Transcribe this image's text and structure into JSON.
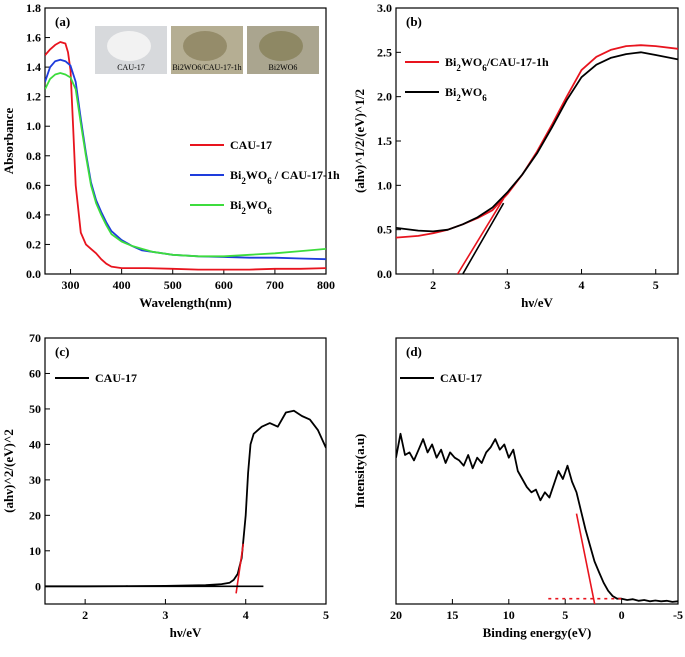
{
  "chart_data": [
    {
      "id": "a",
      "panel_label": "(a)",
      "type": "line",
      "xlabel": "Wavelength(nm)",
      "ylabel": "Absorbance",
      "xlim": [
        250,
        800
      ],
      "ylim": [
        0.0,
        1.8
      ],
      "xticks": [
        300,
        400,
        500,
        600,
        700,
        800
      ],
      "yticks": [
        0.0,
        0.2,
        0.4,
        0.6,
        0.8,
        1.0,
        1.2,
        1.4,
        1.6,
        1.8
      ],
      "ytick_labels": [
        "0.0",
        "0.2",
        "0.4",
        "0.6",
        "0.8",
        "1.0",
        "1.2",
        "1.4",
        "1.6",
        "1.8"
      ],
      "photo_labels": [
        "CAU-17",
        "Bi2WO6/CAU-17-1h",
        "Bi2WO6"
      ],
      "series": [
        {
          "name": "CAU-17",
          "legend": [
            "CAU-17",
            ""
          ],
          "color": "#e8141e",
          "x": [
            250,
            260,
            270,
            280,
            290,
            295,
            300,
            305,
            310,
            320,
            330,
            340,
            350,
            360,
            370,
            380,
            400,
            450,
            500,
            550,
            600,
            650,
            700,
            750,
            800
          ],
          "y": [
            1.48,
            1.52,
            1.55,
            1.57,
            1.56,
            1.5,
            1.38,
            1.0,
            0.6,
            0.28,
            0.2,
            0.17,
            0.14,
            0.1,
            0.07,
            0.05,
            0.04,
            0.04,
            0.035,
            0.03,
            0.03,
            0.03,
            0.035,
            0.035,
            0.04
          ]
        },
        {
          "name": "Bi2WO6 / CAU-17-1h",
          "legend": [
            "Bi",
            "2",
            "WO",
            "6",
            " / CAU-17-1h"
          ],
          "color": "#1e3cdc",
          "x": [
            250,
            260,
            270,
            280,
            290,
            300,
            310,
            320,
            330,
            340,
            350,
            360,
            370,
            380,
            400,
            420,
            440,
            460,
            500,
            550,
            600,
            650,
            700,
            750,
            800
          ],
          "y": [
            1.3,
            1.4,
            1.44,
            1.45,
            1.44,
            1.41,
            1.3,
            1.05,
            0.82,
            0.62,
            0.5,
            0.42,
            0.35,
            0.29,
            0.23,
            0.19,
            0.16,
            0.15,
            0.13,
            0.12,
            0.115,
            0.11,
            0.11,
            0.105,
            0.1
          ]
        },
        {
          "name": "Bi2WO6",
          "legend": [
            "Bi",
            "2",
            "WO",
            "6",
            ""
          ],
          "color": "#3ddc3d",
          "x": [
            250,
            260,
            270,
            280,
            290,
            300,
            310,
            320,
            330,
            340,
            350,
            360,
            370,
            380,
            400,
            420,
            440,
            460,
            500,
            550,
            600,
            650,
            700,
            750,
            800
          ],
          "y": [
            1.25,
            1.32,
            1.35,
            1.36,
            1.35,
            1.33,
            1.25,
            1.02,
            0.8,
            0.6,
            0.48,
            0.4,
            0.33,
            0.27,
            0.22,
            0.19,
            0.17,
            0.15,
            0.13,
            0.12,
            0.12,
            0.13,
            0.14,
            0.155,
            0.17
          ]
        }
      ]
    },
    {
      "id": "b",
      "panel_label": "(b)",
      "type": "line",
      "xlabel": "hν/eV",
      "ylabel": "(ahν)^1/2/(eV)^1/2",
      "xlim": [
        1.5,
        5.3
      ],
      "ylim": [
        0.0,
        3.0
      ],
      "xticks": [
        2,
        3,
        4,
        5
      ],
      "yticks": [
        0.0,
        0.5,
        1.0,
        1.5,
        2.0,
        2.5,
        3.0
      ],
      "ytick_labels": [
        "0.0",
        "0.5",
        "1.0",
        "1.5",
        "2.0",
        "2.5",
        "3.0"
      ],
      "series": [
        {
          "name": "Bi2WO6/CAU-17-1h",
          "legend": [
            "Bi",
            "2",
            "WO",
            "6",
            "/CAU-17-1h"
          ],
          "color": "#e8141e",
          "x": [
            1.5,
            1.8,
            2.0,
            2.2,
            2.4,
            2.6,
            2.8,
            3.0,
            3.2,
            3.4,
            3.6,
            3.8,
            4.0,
            4.2,
            4.4,
            4.6,
            4.8,
            5.0,
            5.3
          ],
          "y": [
            0.41,
            0.43,
            0.46,
            0.5,
            0.56,
            0.63,
            0.72,
            0.9,
            1.12,
            1.38,
            1.68,
            2.0,
            2.3,
            2.45,
            2.53,
            2.57,
            2.58,
            2.57,
            2.54
          ]
        },
        {
          "name": "Bi2WO6",
          "legend": [
            "Bi",
            "2",
            "WO",
            "6",
            ""
          ],
          "color": "#000000",
          "x": [
            1.5,
            1.8,
            2.0,
            2.2,
            2.4,
            2.6,
            2.8,
            3.0,
            3.2,
            3.4,
            3.6,
            3.8,
            4.0,
            4.2,
            4.4,
            4.6,
            4.8,
            5.0,
            5.3
          ],
          "y": [
            0.52,
            0.49,
            0.48,
            0.5,
            0.56,
            0.64,
            0.75,
            0.92,
            1.12,
            1.36,
            1.65,
            1.96,
            2.22,
            2.36,
            2.44,
            2.48,
            2.5,
            2.47,
            2.42
          ]
        },
        {
          "name": "fit-red",
          "color": "#e8141e",
          "fit": true,
          "x": [
            2.33,
            2.95
          ],
          "y": [
            0.0,
            0.85
          ]
        },
        {
          "name": "fit-black",
          "color": "#000000",
          "fit": true,
          "x": [
            2.4,
            2.95
          ],
          "y": [
            0.0,
            0.8
          ]
        }
      ]
    },
    {
      "id": "c",
      "panel_label": "(c)",
      "type": "line",
      "xlabel": "hν/eV",
      "ylabel": "(ahν)^2/(eV)^2",
      "xlim": [
        1.5,
        5.0
      ],
      "ylim": [
        -5,
        70
      ],
      "xticks": [
        2,
        3,
        4,
        5
      ],
      "yticks": [
        0,
        10,
        20,
        30,
        40,
        50,
        60,
        70
      ],
      "ytick_labels": [
        "0",
        "10",
        "20",
        "30",
        "40",
        "50",
        "60",
        "70"
      ],
      "series": [
        {
          "name": "CAU-17",
          "legend": [
            "CAU-17",
            ""
          ],
          "color": "#000000",
          "x": [
            1.5,
            2.0,
            2.5,
            3.0,
            3.5,
            3.7,
            3.8,
            3.85,
            3.9,
            3.95,
            4.0,
            4.03,
            4.06,
            4.1,
            4.15,
            4.2,
            4.3,
            4.4,
            4.5,
            4.6,
            4.7,
            4.8,
            4.9,
            5.0
          ],
          "y": [
            0,
            0,
            0.05,
            0.1,
            0.3,
            0.6,
            1.0,
            1.8,
            3.5,
            8.0,
            20.0,
            32.0,
            40.0,
            43.0,
            44.0,
            45.0,
            46.0,
            45.0,
            49.0,
            49.5,
            48.0,
            47.0,
            44.0,
            39.0
          ]
        },
        {
          "name": "fit-red",
          "color": "#e8141e",
          "fit": true,
          "x": [
            3.88,
            3.97
          ],
          "y": [
            -2,
            12
          ]
        },
        {
          "name": "fit-ext",
          "color": "#000000",
          "fit": true,
          "x": [
            1.5,
            4.22
          ],
          "y": [
            0,
            0
          ]
        }
      ]
    },
    {
      "id": "d",
      "panel_label": "(d)",
      "type": "line",
      "xlabel": "Binding energy(eV)",
      "ylabel": "Intensity(a.u)",
      "xlim": [
        20,
        -5
      ],
      "ylim": [
        0,
        100
      ],
      "xticks": [
        20,
        15,
        10,
        5,
        0,
        -5
      ],
      "yticks": [],
      "ytick_labels": [],
      "series": [
        {
          "name": "CAU-17",
          "legend": [
            "CAU-17",
            ""
          ],
          "color": "#000000",
          "x": [
            20,
            19.6,
            19.2,
            18.8,
            18.4,
            18.0,
            17.6,
            17.2,
            16.8,
            16.4,
            16.0,
            15.6,
            15.2,
            14.8,
            14.4,
            14.0,
            13.6,
            13.2,
            12.8,
            12.4,
            12.0,
            11.6,
            11.2,
            10.8,
            10.4,
            10.0,
            9.6,
            9.2,
            8.8,
            8.4,
            8.0,
            7.6,
            7.2,
            6.8,
            6.4,
            6.0,
            5.6,
            5.2,
            4.8,
            4.4,
            4.0,
            3.6,
            3.2,
            2.8,
            2.4,
            2.0,
            1.6,
            1.2,
            0.8,
            0.4,
            0.0,
            -0.5,
            -1.0,
            -1.5,
            -2.0,
            -2.5,
            -3.0,
            -3.5,
            -4.0,
            -4.5,
            -5.0
          ],
          "y": [
            55,
            64,
            56,
            57,
            54,
            58,
            62,
            57,
            60,
            55,
            58,
            53,
            57,
            55,
            54,
            52,
            56,
            51,
            55,
            53,
            57,
            59,
            62,
            58,
            60,
            55,
            58,
            50,
            47,
            44,
            42,
            43,
            39,
            42,
            40,
            45,
            50,
            47,
            52,
            46,
            42,
            35,
            28,
            22,
            16,
            12,
            8,
            5,
            3,
            2,
            2,
            1.5,
            1.8,
            1.2,
            1.5,
            1.0,
            1.3,
            1.0,
            1.2,
            0.8,
            1.0
          ]
        },
        {
          "name": "fit-red",
          "color": "#e8141e",
          "fit": true,
          "x": [
            4.0,
            2.2
          ],
          "y": [
            34,
            -4
          ]
        },
        {
          "name": "baseline",
          "color": "#e8141e",
          "fit": true,
          "dashed": true,
          "x": [
            6.5,
            0.0
          ],
          "y": [
            2,
            2
          ]
        }
      ]
    }
  ]
}
